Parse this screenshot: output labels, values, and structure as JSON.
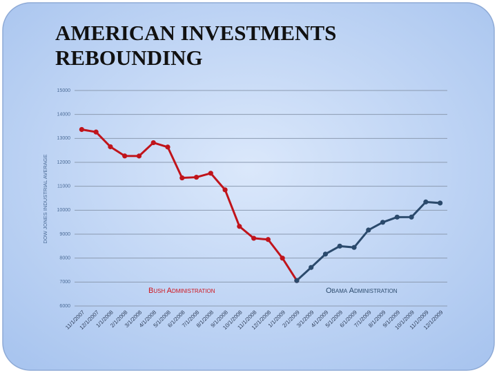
{
  "chart_data": {
    "type": "line",
    "title": "AMERICAN INVESTMENTS REBOUNDING",
    "y_label": "DOW JONES INDUSTRIAL AVERAGE",
    "annotations": [
      "Bush Administration",
      "Obama Administration"
    ],
    "categories": [
      "11/1/2007",
      "12/1/2007",
      "1/1/2008",
      "2/1/2008",
      "3/1/2008",
      "4/1/2008",
      "5/1/2008",
      "6/1/2008",
      "7/1/2008",
      "8/1/2008",
      "9/1/2008",
      "10/1/2008",
      "11/1/2008",
      "12/1/2008",
      "1/1/2009",
      "2/1/2009",
      "3/1/2009",
      "4/1/2009",
      "5/1/2009",
      "6/1/2009",
      "7/1/2009",
      "8/1/2009",
      "9/1/2009",
      "10/1/2009",
      "11/1/2009",
      "12/1/2009"
    ],
    "series": [
      {
        "name": "Bush Administration",
        "color": "#c0141b",
        "values": [
          13371,
          13265,
          12650,
          12266,
          12263,
          12820,
          12638,
          11350,
          11378,
          11544,
          10851,
          9325,
          8829,
          8776,
          8000,
          7063,
          null,
          null,
          null,
          null,
          null,
          null,
          null,
          null,
          null,
          null
        ]
      },
      {
        "name": "Obama Administration",
        "color": "#2b4a6c",
        "values": [
          null,
          null,
          null,
          null,
          null,
          null,
          null,
          null,
          null,
          null,
          null,
          null,
          null,
          null,
          null,
          7063,
          7609,
          8168,
          8500,
          8447,
          9172,
          9496,
          9712,
          9713,
          10345,
          10300
        ]
      }
    ],
    "ylim": [
      6000,
      15000
    ],
    "yticks": [
      6000,
      7000,
      8000,
      9000,
      10000,
      11000,
      12000,
      13000,
      14000,
      15000
    ],
    "grid": true
  }
}
